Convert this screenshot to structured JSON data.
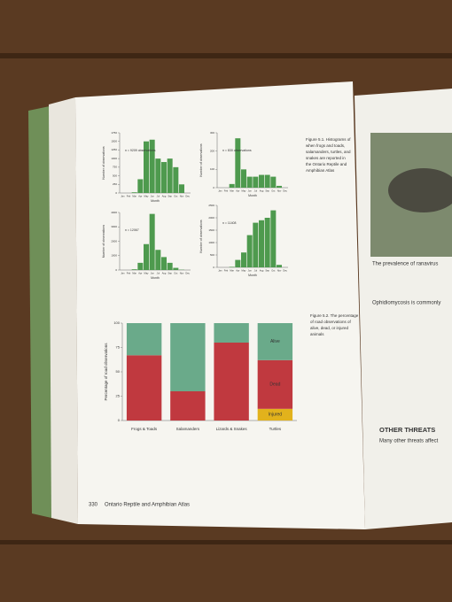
{
  "chart_data": [
    {
      "type": "bar",
      "annotation": "n = 9209 observations",
      "x_label": "Month",
      "y_label": "Number of observations",
      "color": "#4e9a4e",
      "categories": [
        "Jan",
        "Feb",
        "Mar",
        "Apr",
        "May",
        "Jun",
        "Jul",
        "Aug",
        "Sep",
        "Oct",
        "Nov",
        "Dec"
      ],
      "values": [
        0,
        0,
        20,
        400,
        1500,
        1550,
        1000,
        900,
        1000,
        750,
        250,
        0
      ],
      "ylim": [
        0,
        1750
      ],
      "yticks": [
        0,
        250,
        500,
        750,
        1000,
        1250,
        1500,
        1750
      ]
    },
    {
      "type": "bar",
      "annotation": "n = 830 observations",
      "x_label": "Month",
      "y_label": "Number of observations",
      "color": "#4e9a4e",
      "categories": [
        "Jan",
        "Feb",
        "Mar",
        "Apr",
        "May",
        "Jun",
        "Jul",
        "Aug",
        "Sep",
        "Oct",
        "Nov",
        "Dec"
      ],
      "values": [
        0,
        0,
        20,
        270,
        100,
        60,
        60,
        70,
        70,
        60,
        10,
        0
      ],
      "ylim": [
        0,
        300
      ],
      "yticks": [
        0,
        100,
        200,
        300
      ]
    },
    {
      "type": "bar",
      "annotation": "n = 12067",
      "x_label": "Month",
      "y_label": "Number of observations",
      "color": "#4e9a4e",
      "categories": [
        "Jan",
        "Feb",
        "Mar",
        "Apr",
        "May",
        "Jun",
        "Jul",
        "Aug",
        "Sep",
        "Oct",
        "Nov",
        "Dec"
      ],
      "values": [
        0,
        0,
        50,
        500,
        1800,
        3900,
        1400,
        900,
        500,
        150,
        20,
        0
      ],
      "ylim": [
        0,
        4000
      ],
      "yticks": [
        0,
        1000,
        2000,
        3000,
        4000
      ]
    },
    {
      "type": "bar",
      "annotation": "n = 11408",
      "x_label": "Month",
      "y_label": "Number of observations",
      "color": "#4e9a4e",
      "categories": [
        "Jan",
        "Feb",
        "Mar",
        "Apr",
        "May",
        "Jun",
        "Jul",
        "Aug",
        "Sep",
        "Oct",
        "Nov",
        "Dec"
      ],
      "values": [
        0,
        0,
        20,
        300,
        600,
        1300,
        1800,
        1900,
        2000,
        2300,
        100,
        0
      ],
      "ylim": [
        0,
        2500
      ],
      "yticks": [
        0,
        500,
        1000,
        1500,
        2000,
        2500
      ]
    },
    {
      "type": "stacked_bar",
      "y_label": "Percentage of road observations",
      "categories": [
        "Frogs & Toads",
        "Salamanders",
        "Lizards & Snakes",
        "Turtles"
      ],
      "series": [
        {
          "name": "Injured",
          "color": "#e2b21c",
          "values": [
            0,
            0,
            0,
            12
          ]
        },
        {
          "name": "Dead",
          "color": "#c0393f",
          "values": [
            67,
            30,
            80,
            50
          ]
        },
        {
          "name": "Alive",
          "color": "#6aaa8a",
          "values": [
            33,
            70,
            20,
            38
          ]
        }
      ],
      "ylim": [
        0,
        100
      ],
      "yticks": [
        0,
        25,
        50,
        75,
        100
      ]
    }
  ],
  "page": {
    "caption_1": [
      "Figure 5.1. Histograms of",
      "when frogs and toads,",
      "salamanders, turtles, and",
      "snakes are reported in",
      "the Ontario Reptile and",
      "Amphibian Atlas"
    ],
    "caption_2": [
      "Figure 5.2. The percentage",
      "of road observations of",
      "alive, dead, or injured",
      "animals"
    ],
    "page_number": "330",
    "running_title": "Ontario Reptile and Amphibian Atlas",
    "right_page": [
      "The prevalence of ranavirus",
      "Ophidiomycosis is commonly",
      "OTHER THREATS",
      "Many other threats affect"
    ]
  }
}
